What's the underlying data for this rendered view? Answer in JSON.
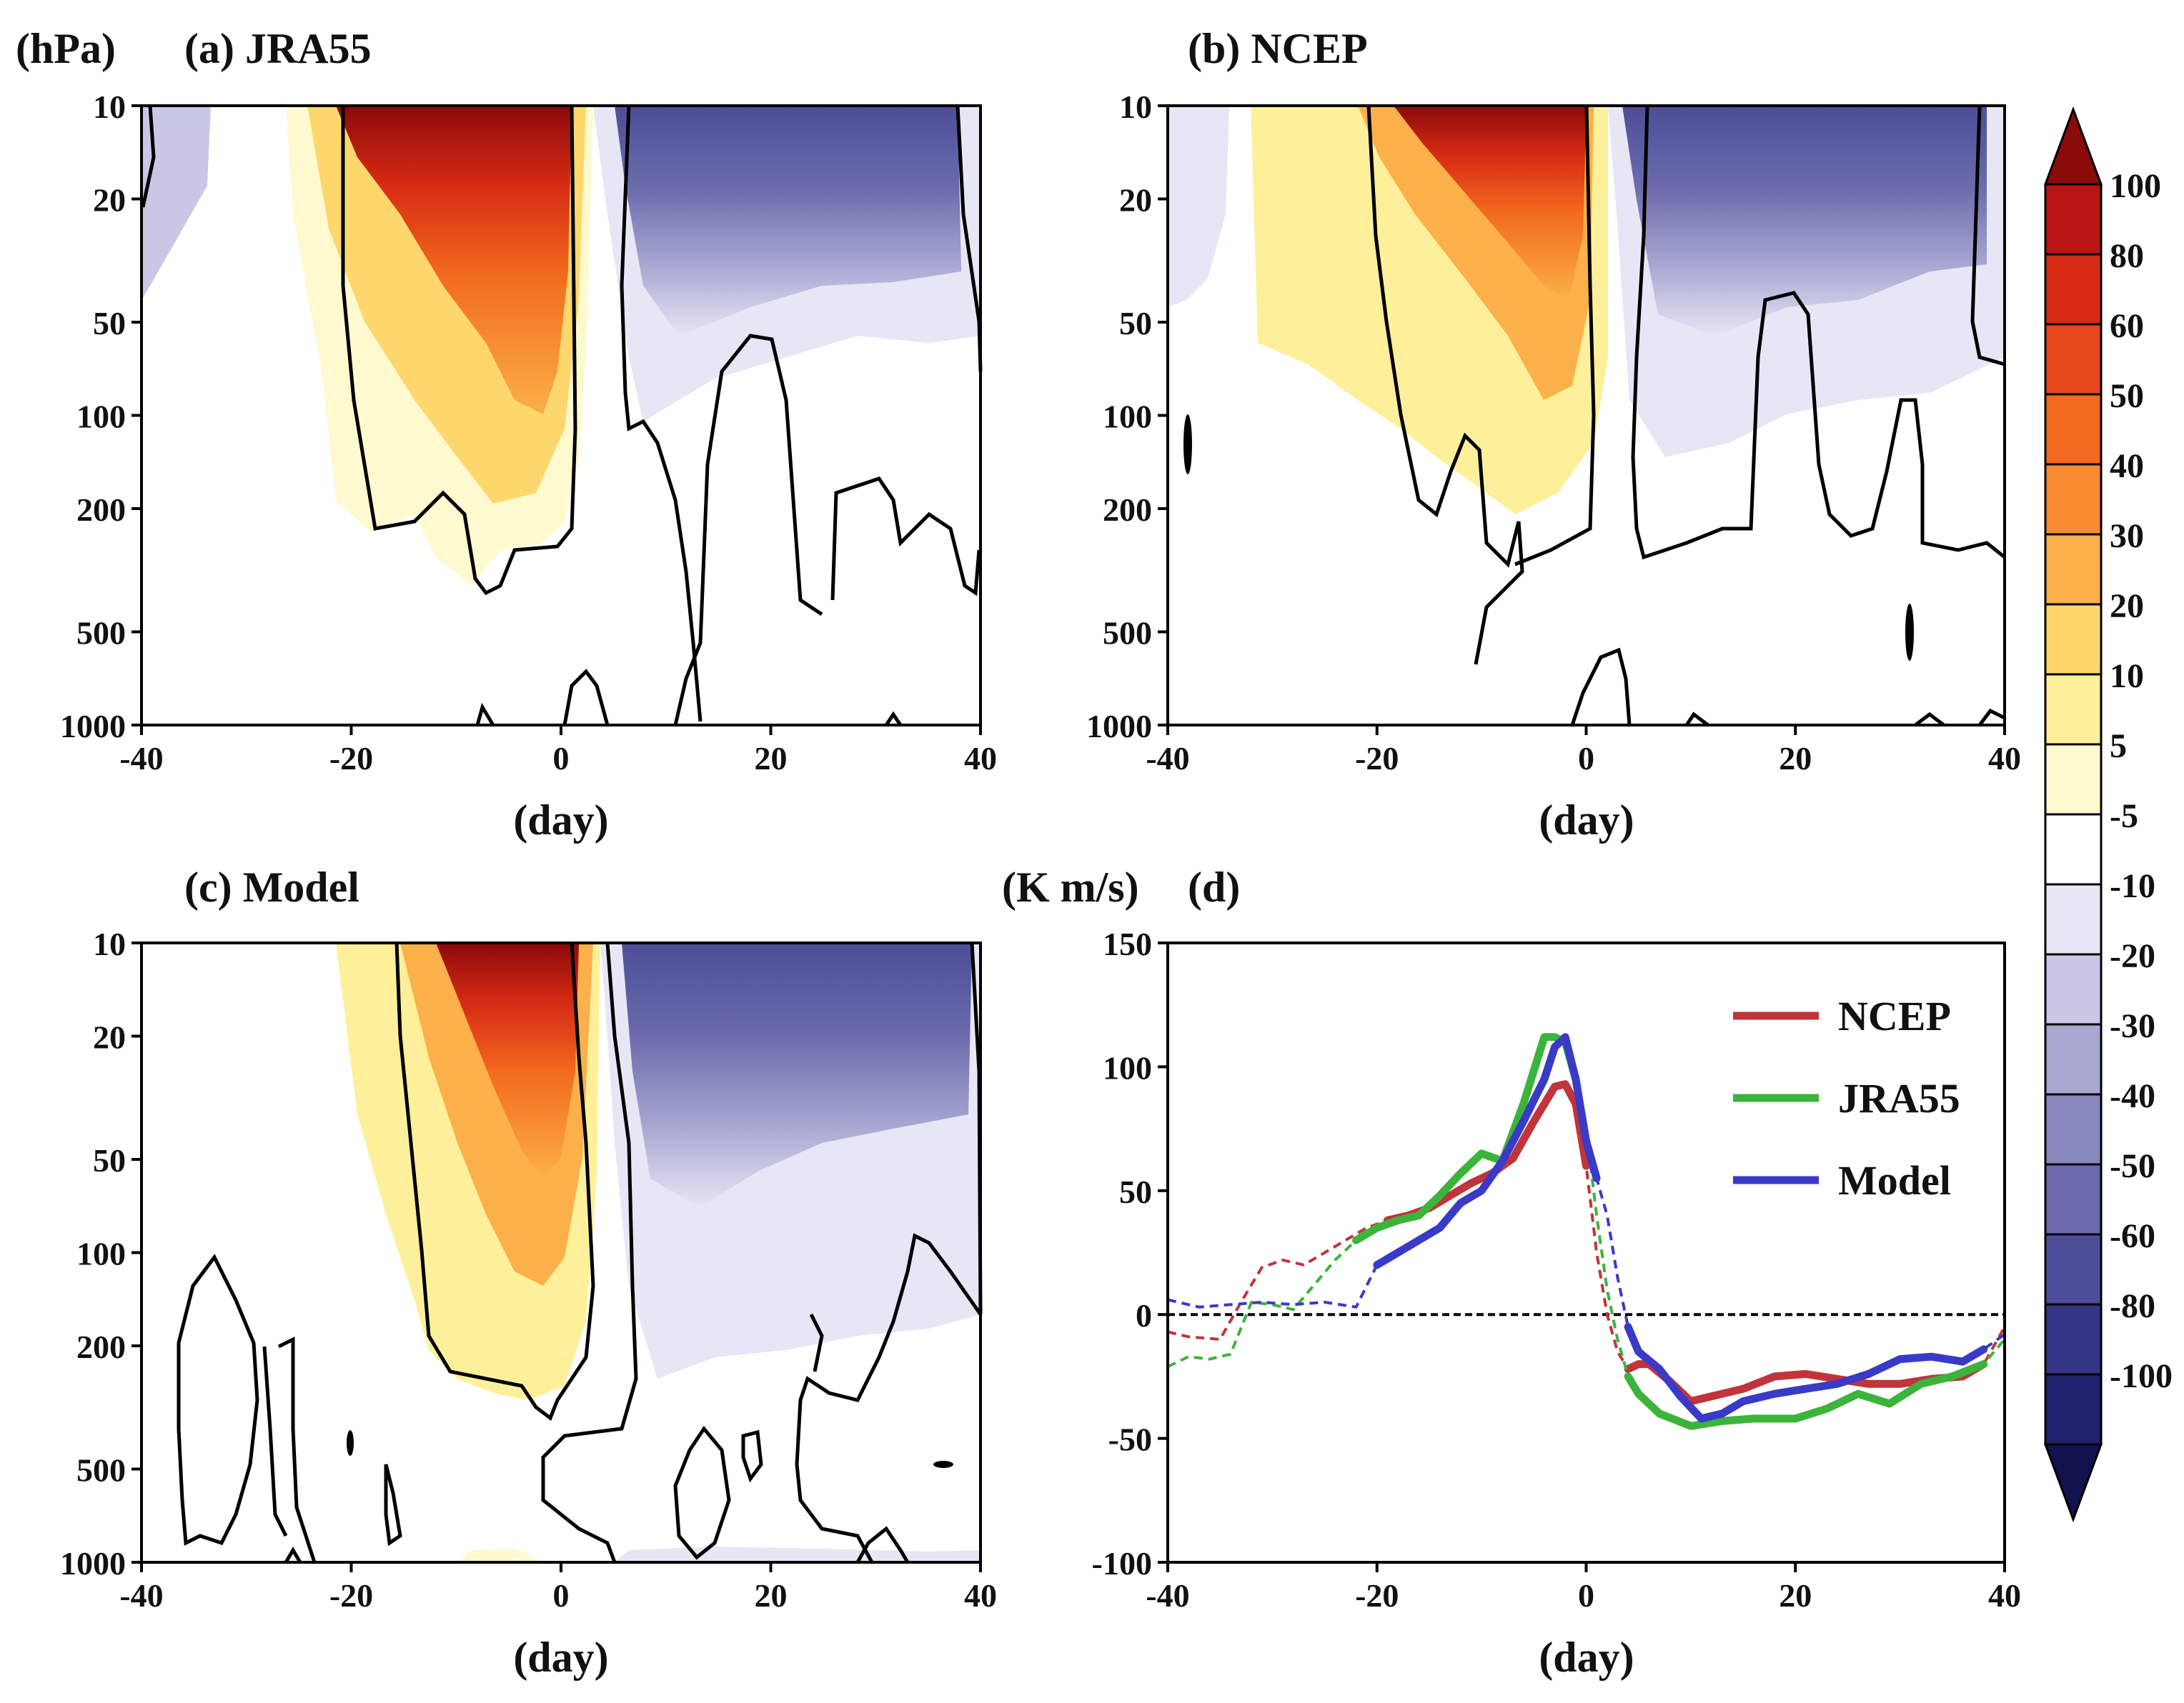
{
  "chart_data": [
    {
      "id": "a",
      "type": "heatmap",
      "title": "(a) JRA55",
      "unit_label": "(hPa)",
      "xlabel": "(day)",
      "ylabel": "",
      "xlim": [
        -40,
        40
      ],
      "xticks": [
        -40,
        -20,
        0,
        20,
        40
      ],
      "ylim": [
        10,
        1000
      ],
      "yticks": [
        10,
        20,
        50,
        100,
        200,
        500,
        1000
      ],
      "yscale": "log-pressure"
    },
    {
      "id": "b",
      "type": "heatmap",
      "title": "(b) NCEP",
      "xlabel": "(day)",
      "xlim": [
        -40,
        40
      ],
      "xticks": [
        -40,
        -20,
        0,
        20,
        40
      ],
      "ylim": [
        10,
        1000
      ],
      "yticks": [
        10,
        20,
        50,
        100,
        200,
        500,
        1000
      ],
      "yscale": "log-pressure"
    },
    {
      "id": "c",
      "type": "heatmap",
      "title": "(c) Model",
      "xlabel": "(day)",
      "xlim": [
        -40,
        40
      ],
      "xticks": [
        -40,
        -20,
        0,
        20,
        40
      ],
      "ylim": [
        10,
        1000
      ],
      "yticks": [
        10,
        20,
        50,
        100,
        200,
        500,
        1000
      ],
      "yscale": "log-pressure"
    },
    {
      "id": "d",
      "type": "line",
      "title": "(d)",
      "unit_label": "(K m/s)",
      "xlabel": "(day)",
      "xlim": [
        -40,
        40
      ],
      "xticks": [
        -40,
        -20,
        0,
        20,
        40
      ],
      "ylim": [
        -100,
        150
      ],
      "yticks": [
        150,
        100,
        50,
        0,
        -50,
        -100
      ],
      "legend_position": "top-right",
      "series": [
        {
          "name": "NCEP",
          "color": "#c0343a",
          "x": [
            -40,
            -38,
            -35,
            -33,
            -31,
            -29,
            -27,
            -25,
            -23,
            -21,
            -19,
            -17,
            -15,
            -13,
            -11,
            -9,
            -7,
            -5,
            -3,
            -2,
            -1,
            0,
            1,
            2,
            3,
            4,
            5,
            6,
            8,
            10,
            12,
            15,
            18,
            21,
            24,
            27,
            30,
            33,
            36,
            38,
            40
          ],
          "values": [
            -7,
            -9,
            -10,
            5,
            19,
            22,
            20,
            25,
            30,
            35,
            38,
            40,
            43,
            48,
            53,
            57,
            63,
            78,
            92,
            93,
            85,
            60,
            25,
            0,
            -15,
            -22,
            -20,
            -20,
            -27,
            -35,
            -33,
            -30,
            -25,
            -24,
            -26,
            -28,
            -28,
            -26,
            -25,
            -20,
            -5
          ],
          "solid_ranges": [
            [
              -20,
              0
            ],
            [
              4,
              38
            ]
          ]
        },
        {
          "name": "JRA55",
          "color": "#3bb43b",
          "x": [
            -40,
            -38,
            -36,
            -34,
            -32,
            -30,
            -28,
            -26,
            -24,
            -22,
            -20,
            -18,
            -16,
            -14,
            -12,
            -10,
            -8,
            -6,
            -4,
            -3,
            -2,
            -1,
            0,
            1,
            2,
            3,
            4,
            5,
            7,
            10,
            13,
            16,
            20,
            23,
            26,
            29,
            32,
            35,
            38,
            40
          ],
          "values": [
            -21,
            -17,
            -18,
            -16,
            5,
            4,
            2,
            12,
            22,
            30,
            35,
            38,
            40,
            48,
            57,
            65,
            62,
            85,
            112,
            112,
            110,
            95,
            75,
            40,
            10,
            -10,
            -25,
            -32,
            -40,
            -45,
            -43,
            -42,
            -42,
            -38,
            -32,
            -36,
            -28,
            -25,
            -20,
            -10
          ],
          "solid_ranges": [
            [
              -23,
              -1
            ],
            [
              4,
              38
            ]
          ]
        },
        {
          "name": "Model",
          "color": "#3a3ac8",
          "x": [
            -40,
            -37,
            -34,
            -31,
            -28,
            -25,
            -22,
            -20,
            -18,
            -16,
            -14,
            -12,
            -10,
            -8,
            -6,
            -4,
            -3,
            -2,
            -1,
            0,
            1,
            2,
            3,
            4,
            5,
            7,
            9,
            11,
            13,
            15,
            18,
            21,
            24,
            27,
            30,
            33,
            36,
            38,
            40
          ],
          "values": [
            6,
            3,
            4,
            5,
            4,
            5,
            3,
            20,
            25,
            30,
            35,
            45,
            50,
            62,
            78,
            95,
            108,
            112,
            95,
            70,
            55,
            40,
            15,
            -5,
            -15,
            -22,
            -33,
            -42,
            -40,
            -35,
            -32,
            -30,
            -28,
            -24,
            -18,
            -17,
            -19,
            -14,
            -8
          ],
          "solid_ranges": [
            [
              -20,
              1
            ],
            [
              4,
              38
            ]
          ]
        }
      ],
      "reference_line": 0
    }
  ],
  "colorbar": {
    "labels": [
      "100",
      "80",
      "60",
      "50",
      "40",
      "30",
      "20",
      "10",
      "5",
      "-5",
      "-10",
      "-20",
      "-30",
      "-40",
      "-50",
      "-60",
      "-80",
      "-100"
    ],
    "colors": [
      "#8b0a0a",
      "#b81414",
      "#d62a14",
      "#e6481a",
      "#f26a1e",
      "#f88c30",
      "#fbb049",
      "#fdd76b",
      "#fef09a",
      "#fff9cf",
      "#ffffff",
      "#e6e6f5",
      "#c8c8e6",
      "#a8a8d2",
      "#8888bf",
      "#6a6aac",
      "#4e4e98",
      "#353587",
      "#212170",
      "#12124f"
    ]
  }
}
